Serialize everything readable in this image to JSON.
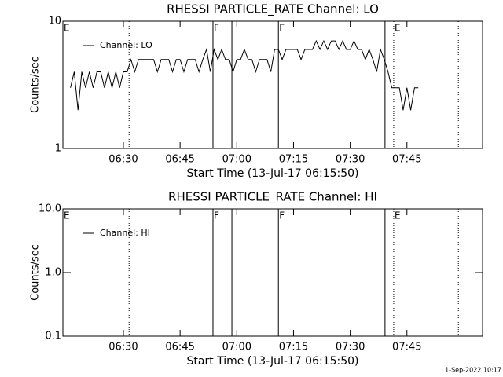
{
  "chart_data": [
    {
      "type": "line",
      "title": "RHESSI PARTICLE_RATE Channel: LO",
      "xlabel": "Start Time (13-Jul-17 06:15:50)",
      "ylabel": "Counts/sec",
      "log_y": true,
      "ylim": [
        1,
        10
      ],
      "yticks": [
        1,
        10
      ],
      "xlim": [
        374,
        485
      ],
      "xticks": [
        {
          "value": 390,
          "label": "06:30"
        },
        {
          "value": 405,
          "label": "06:45"
        },
        {
          "value": 420,
          "label": "07:00"
        },
        {
          "value": 435,
          "label": "07:15"
        },
        {
          "value": 450,
          "label": "07:30"
        },
        {
          "value": 465,
          "label": "07:45"
        }
      ],
      "x": [
        376,
        377,
        378,
        379,
        380,
        381,
        382,
        383,
        384,
        385,
        386,
        387,
        388,
        389,
        390,
        391,
        392,
        393,
        394,
        395,
        396,
        397,
        398,
        399,
        400,
        401,
        402,
        403,
        404,
        405,
        406,
        407,
        408,
        409,
        410,
        411,
        412,
        413,
        414,
        415,
        416,
        417,
        418,
        419,
        420,
        421,
        422,
        423,
        424,
        425,
        426,
        427,
        428,
        429,
        430,
        431,
        432,
        433,
        434,
        435,
        436,
        437,
        438,
        439,
        440,
        441,
        442,
        443,
        444,
        445,
        446,
        447,
        448,
        449,
        450,
        451,
        452,
        453,
        454,
        455,
        456,
        457,
        458,
        459,
        460,
        461,
        462,
        463,
        464,
        465,
        466,
        467,
        468
      ],
      "series": [
        {
          "name": "Channel: LO",
          "color": "#000000",
          "values": [
            3,
            4,
            2,
            4,
            3,
            4,
            3,
            4,
            4,
            3,
            4,
            3,
            4,
            3,
            4,
            4,
            5,
            4,
            5,
            5,
            5,
            5,
            5,
            4,
            5,
            5,
            5,
            4,
            5,
            5,
            4,
            5,
            5,
            5,
            4,
            5,
            6,
            4,
            6,
            5,
            6,
            5,
            5,
            4,
            5,
            5,
            6,
            5,
            5,
            4,
            5,
            5,
            5,
            4,
            6,
            6,
            5,
            6,
            6,
            6,
            6,
            5,
            6,
            6,
            6,
            7,
            6,
            7,
            6,
            7,
            7,
            6,
            7,
            6,
            6,
            7,
            6,
            6,
            5,
            6,
            5,
            4,
            6,
            5,
            4,
            3,
            3,
            3,
            2,
            3,
            2,
            3,
            3
          ]
        }
      ],
      "vlines": [
        {
          "x": 391.5,
          "style": "dotted"
        },
        {
          "x": 413.7,
          "style": "solid"
        },
        {
          "x": 418.7,
          "style": "solid"
        },
        {
          "x": 431,
          "style": "solid"
        },
        {
          "x": 459.2,
          "style": "solid"
        },
        {
          "x": 461.5,
          "style": "dotted"
        },
        {
          "x": 478.6,
          "style": "dotted"
        }
      ],
      "flags": [
        {
          "x": 374,
          "label": "E"
        },
        {
          "x": 413.7,
          "label": "F"
        },
        {
          "x": 431,
          "label": "F"
        },
        {
          "x": 461.5,
          "label": "E"
        }
      ]
    },
    {
      "type": "line",
      "title": "RHESSI PARTICLE_RATE Channel: HI",
      "xlabel": "Start Time (13-Jul-17 06:15:50)",
      "ylabel": "Counts/sec",
      "log_y": true,
      "ylim": [
        0.1,
        10
      ],
      "yticks": [
        0.1,
        {
          "value": 1,
          "label": "1.0"
        },
        {
          "value": 10,
          "label": "10.0"
        }
      ],
      "xlim": [
        374,
        485
      ],
      "xticks": [
        {
          "value": 390,
          "label": "06:30"
        },
        {
          "value": 405,
          "label": "06:45"
        },
        {
          "value": 420,
          "label": "07:00"
        },
        {
          "value": 435,
          "label": "07:15"
        },
        {
          "value": 450,
          "label": "07:30"
        },
        {
          "value": 465,
          "label": "07:45"
        }
      ],
      "x": [],
      "series": [
        {
          "name": "Channel: HI",
          "color": "#000000",
          "values": []
        }
      ],
      "vlines": [
        {
          "x": 391.5,
          "style": "dotted"
        },
        {
          "x": 413.7,
          "style": "solid"
        },
        {
          "x": 418.7,
          "style": "solid"
        },
        {
          "x": 431,
          "style": "solid"
        },
        {
          "x": 459.2,
          "style": "solid"
        },
        {
          "x": 461.5,
          "style": "dotted"
        },
        {
          "x": 478.6,
          "style": "dotted"
        }
      ],
      "flags": [
        {
          "x": 374,
          "label": "E"
        },
        {
          "x": 413.7,
          "label": "F"
        },
        {
          "x": 431,
          "label": "F"
        },
        {
          "x": 461.5,
          "label": "E"
        }
      ]
    }
  ],
  "footer": "1-Sep-2022 10:17"
}
